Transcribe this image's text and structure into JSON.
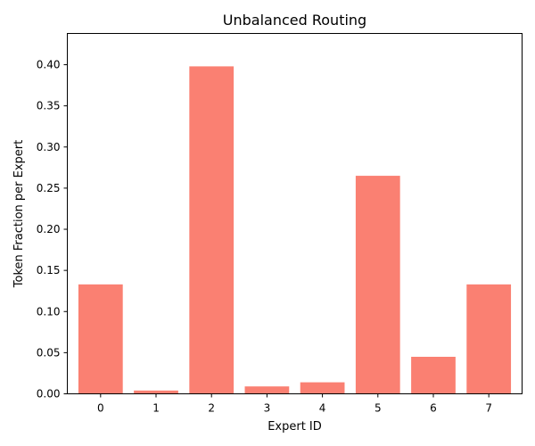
{
  "chart_data": {
    "type": "bar",
    "title": "Unbalanced Routing",
    "xlabel": "Expert ID",
    "ylabel": "Token Fraction per Expert",
    "categories": [
      "0",
      "1",
      "2",
      "3",
      "4",
      "5",
      "6",
      "7"
    ],
    "values": [
      0.133,
      0.004,
      0.398,
      0.009,
      0.014,
      0.265,
      0.045,
      0.133
    ],
    "ylim": [
      0,
      0.438
    ],
    "yticks": [
      "0.00",
      "0.05",
      "0.10",
      "0.15",
      "0.20",
      "0.25",
      "0.30",
      "0.35",
      "0.40"
    ],
    "bar_color": "#fa8072",
    "grid": false,
    "legend": false
  }
}
